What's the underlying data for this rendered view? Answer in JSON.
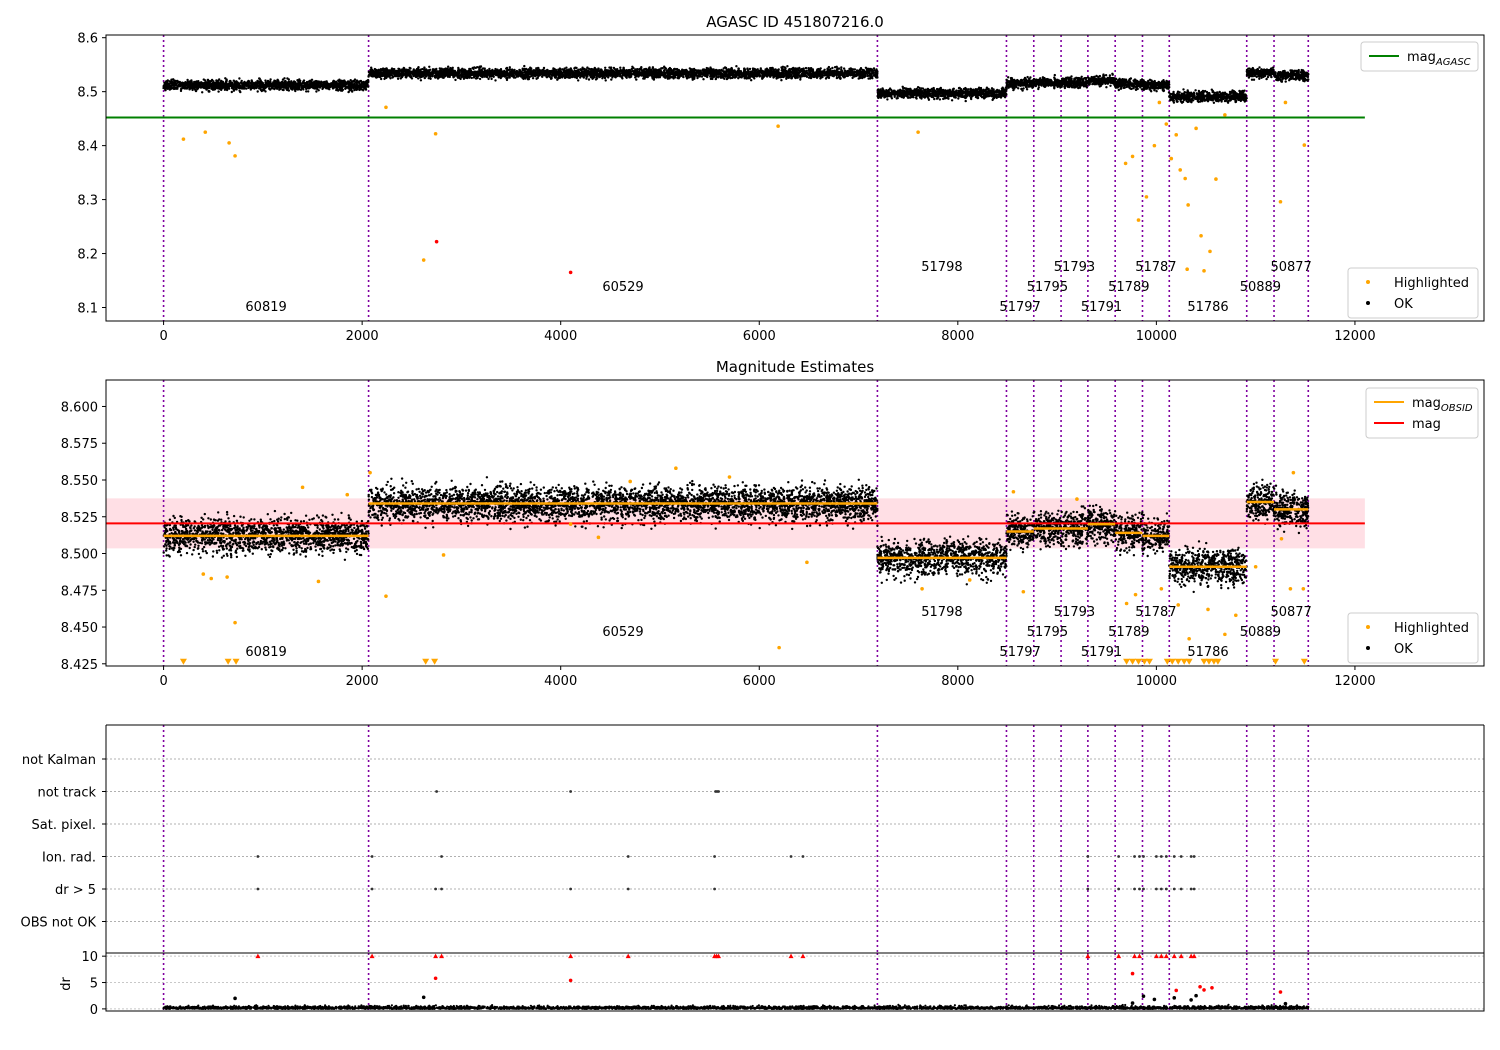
{
  "obsids": [
    {
      "label": "60819",
      "start": 0,
      "end": 2065,
      "mag": 8.512,
      "row": 2
    },
    {
      "label": "60529",
      "start": 2065,
      "end": 7190,
      "mag": 8.534,
      "row": 1
    },
    {
      "label": "51798",
      "start": 7190,
      "end": 8490,
      "mag": 8.497,
      "row": 0
    },
    {
      "label": "51797",
      "start": 8490,
      "end": 8765,
      "mag": 8.515,
      "row": 2
    },
    {
      "label": "51795",
      "start": 8765,
      "end": 9040,
      "mag": 8.517,
      "row": 1
    },
    {
      "label": "51793",
      "start": 9040,
      "end": 9310,
      "mag": 8.517,
      "row": 0
    },
    {
      "label": "51791",
      "start": 9310,
      "end": 9585,
      "mag": 8.52,
      "row": 2
    },
    {
      "label": "51789",
      "start": 9585,
      "end": 9860,
      "mag": 8.514,
      "row": 1
    },
    {
      "label": "51787",
      "start": 9860,
      "end": 10130,
      "mag": 8.512,
      "row": 0
    },
    {
      "label": "51786",
      "start": 10130,
      "end": 10910,
      "mag": 8.491,
      "row": 2
    },
    {
      "label": "50889",
      "start": 10910,
      "end": 11185,
      "mag": 8.535,
      "row": 1
    },
    {
      "label": "50877",
      "start": 11185,
      "end": 11530,
      "mag": 8.53,
      "row": 0
    }
  ],
  "chart_data": [
    {
      "type": "scatter",
      "title": "AGASC ID 451807216.0",
      "xlabel": "",
      "ylabel": "",
      "xlim": [
        -580,
        13300
      ],
      "ylim": [
        8.075,
        8.605
      ],
      "xticks": [
        0,
        2000,
        4000,
        6000,
        8000,
        10000,
        12000
      ],
      "yticks": [
        8.1,
        8.2,
        8.3,
        8.4,
        8.5,
        8.6
      ],
      "reference_lines": [
        {
          "name": "mag_AGASC",
          "y": 8.452,
          "x_range": [
            -580,
            12100
          ],
          "color": "#008000"
        }
      ],
      "legend_top": {
        "placement": "upper right",
        "entries": [
          {
            "name": "mag",
            "sub": "AGASC",
            "color": "#008000",
            "kind": "line"
          }
        ]
      },
      "legend_bottom": {
        "placement": "lower right",
        "entries": [
          {
            "name": "Highlighted",
            "color": "#ffa500",
            "kind": "dot"
          },
          {
            "name": "OK",
            "color": "#000000",
            "kind": "dot"
          }
        ]
      },
      "series": [
        {
          "name": "OK",
          "color": "#000000",
          "note": "dense measurements, one cluster per observation at its mean magnitude"
        },
        {
          "name": "Highlighted",
          "color": "#ffa500",
          "points": [
            [
              200,
              8.412
            ],
            [
              420,
              8.425
            ],
            [
              660,
              8.405
            ],
            [
              720,
              8.381
            ],
            [
              2240,
              8.471
            ],
            [
              2740,
              8.422
            ],
            [
              6190,
              8.436
            ],
            [
              7600,
              8.425
            ],
            [
              9690,
              8.367
            ],
            [
              9760,
              8.38
            ],
            [
              9820,
              8.262
            ],
            [
              9900,
              8.305
            ],
            [
              9980,
              8.4
            ],
            [
              10030,
              8.48
            ],
            [
              10100,
              8.44
            ],
            [
              10150,
              8.376
            ],
            [
              10200,
              8.42
            ],
            [
              10240,
              8.355
            ],
            [
              10290,
              8.339
            ],
            [
              10320,
              8.29
            ],
            [
              10400,
              8.432
            ],
            [
              10450,
              8.233
            ],
            [
              10540,
              8.204
            ],
            [
              10600,
              8.338
            ],
            [
              10690,
              8.457
            ],
            [
              11250,
              8.296
            ],
            [
              11300,
              8.48
            ],
            [
              11490,
              8.401
            ],
            [
              2620,
              8.188
            ],
            [
              10480,
              8.168
            ],
            [
              10310,
              8.171
            ]
          ]
        },
        {
          "name": "Red",
          "color": "#ff0000",
          "points": [
            [
              2750,
              8.222
            ],
            [
              4100,
              8.165
            ]
          ]
        }
      ]
    },
    {
      "type": "scatter",
      "title": "Magnitude Estimates",
      "xlabel": "",
      "ylabel": "",
      "xlim": [
        -580,
        13300
      ],
      "ylim": [
        8.4235,
        8.618
      ],
      "xticks": [
        0,
        2000,
        4000,
        6000,
        8000,
        10000,
        12000
      ],
      "yticks": [
        8.425,
        8.45,
        8.475,
        8.5,
        8.525,
        8.55,
        8.575,
        8.6
      ],
      "ytick_labels": [
        "8.425",
        "8.450",
        "8.475",
        "8.500",
        "8.525",
        "8.550",
        "8.575",
        "8.600"
      ],
      "reference_lines": [
        {
          "name": "mag",
          "y": 8.5205,
          "x_range": [
            -580,
            12100
          ],
          "color": "#ff0000"
        }
      ],
      "error_band": {
        "y_low": 8.5035,
        "y_high": 8.5375,
        "color": "#ffc0cb"
      },
      "legend_top": {
        "placement": "upper right",
        "entries": [
          {
            "name": "mag",
            "sub": "OBSID",
            "color": "#ffa500",
            "kind": "line"
          },
          {
            "name": "mag",
            "sub": "",
            "color": "#ff0000",
            "kind": "line"
          }
        ]
      },
      "legend_bottom": {
        "placement": "lower right",
        "entries": [
          {
            "name": "Highlighted",
            "color": "#ffa500",
            "kind": "dot"
          },
          {
            "name": "OK",
            "color": "#000000",
            "kind": "dot"
          }
        ]
      },
      "series": [
        {
          "name": "Highlighted",
          "color": "#ffa500",
          "points": [
            [
              400,
              8.486
            ],
            [
              480,
              8.483
            ],
            [
              640,
              8.484
            ],
            [
              720,
              8.453
            ],
            [
              1400,
              8.545
            ],
            [
              1560,
              8.481
            ],
            [
              1850,
              8.54
            ],
            [
              2080,
              8.555
            ],
            [
              2240,
              8.471
            ],
            [
              2820,
              8.499
            ],
            [
              4100,
              8.52
            ],
            [
              4380,
              8.511
            ],
            [
              4700,
              8.549
            ],
            [
              5160,
              8.558
            ],
            [
              5700,
              8.552
            ],
            [
              6200,
              8.436
            ],
            [
              6480,
              8.494
            ],
            [
              7640,
              8.476
            ],
            [
              8120,
              8.482
            ],
            [
              8560,
              8.542
            ],
            [
              8660,
              8.474
            ],
            [
              9200,
              8.537
            ],
            [
              9700,
              8.466
            ],
            [
              9790,
              8.472
            ],
            [
              10050,
              8.476
            ],
            [
              10220,
              8.465
            ],
            [
              10330,
              8.442
            ],
            [
              10520,
              8.462
            ],
            [
              10690,
              8.445
            ],
            [
              10800,
              8.458
            ],
            [
              11000,
              8.491
            ],
            [
              11350,
              8.476
            ],
            [
              11480,
              8.476
            ],
            [
              11380,
              8.555
            ],
            [
              11260,
              8.51
            ]
          ]
        },
        {
          "name": "Below range",
          "color": "#ffa500",
          "marker": "triangle-down",
          "points": [
            [
              200,
              8.425
            ],
            [
              650,
              8.425
            ],
            [
              730,
              8.425
            ],
            [
              2640,
              8.425
            ],
            [
              2730,
              8.425
            ],
            [
              9700,
              8.425
            ],
            [
              9760,
              8.425
            ],
            [
              9820,
              8.425
            ],
            [
              9880,
              8.425
            ],
            [
              9930,
              8.425
            ],
            [
              10110,
              8.425
            ],
            [
              10160,
              8.425
            ],
            [
              10220,
              8.425
            ],
            [
              10280,
              8.425
            ],
            [
              10330,
              8.425
            ],
            [
              10480,
              8.425
            ],
            [
              10530,
              8.425
            ],
            [
              10580,
              8.425
            ],
            [
              10620,
              8.425
            ],
            [
              11200,
              8.425
            ],
            [
              11490,
              8.425
            ]
          ]
        }
      ]
    },
    {
      "type": "scatter",
      "title": "",
      "xlabel": "",
      "ylabel": "",
      "xlim": [
        -580,
        13300
      ],
      "flag_rows": [
        "not Kalman",
        "not track",
        "Sat. pixel.",
        "Ion. rad.",
        "dr > 5",
        "OBS not OK"
      ],
      "flag_points": {
        "not track": [
          2750,
          4100,
          5560,
          5575,
          5590
        ],
        "Ion. rad.": [
          950,
          2100,
          2800,
          4680,
          5550,
          6320,
          6440,
          9310,
          9620,
          9780,
          9830,
          9870,
          10000,
          10050,
          10100,
          10180,
          10250,
          10350,
          10380
        ],
        "dr > 5": [
          950,
          2100,
          2740,
          2800,
          4100,
          4680,
          5550,
          9310,
          9620,
          9780,
          9830,
          9870,
          10000,
          10050,
          10100,
          10180,
          10250,
          10350,
          10380
        ]
      }
    },
    {
      "type": "scatter",
      "title": "",
      "xlabel": "",
      "ylabel": "dr",
      "xlim": [
        -580,
        13300
      ],
      "ylim": [
        -0.4,
        10.6
      ],
      "yticks": [
        0,
        5,
        10
      ],
      "series": [
        {
          "name": "dr",
          "color": "#000000",
          "note": "dense near zero",
          "points": [
            [
              720,
              2.0
            ],
            [
              2620,
              2.2
            ],
            [
              9760,
              1.1
            ],
            [
              9870,
              2.4
            ],
            [
              9980,
              1.8
            ],
            [
              10180,
              2.1
            ],
            [
              10350,
              1.7
            ],
            [
              10400,
              2.5
            ],
            [
              11300,
              1.0
            ]
          ]
        },
        {
          "name": "dr capped",
          "color": "#ff0000",
          "marker": "triangle-up",
          "points": [
            [
              950,
              10
            ],
            [
              2100,
              10
            ],
            [
              2740,
              10
            ],
            [
              2800,
              10
            ],
            [
              4100,
              10
            ],
            [
              4680,
              10
            ],
            [
              5550,
              10
            ],
            [
              5570,
              10
            ],
            [
              5590,
              10
            ],
            [
              6320,
              10
            ],
            [
              6440,
              10
            ],
            [
              9310,
              10
            ],
            [
              9620,
              10
            ],
            [
              9780,
              10
            ],
            [
              9830,
              10
            ],
            [
              10000,
              10
            ],
            [
              10050,
              10
            ],
            [
              10100,
              10
            ],
            [
              10180,
              10
            ],
            [
              10250,
              10
            ],
            [
              10350,
              10
            ],
            [
              10380,
              10
            ]
          ]
        },
        {
          "name": "dr outliers",
          "color": "#ff0000",
          "points": [
            [
              2740,
              5.8
            ],
            [
              4100,
              5.4
            ],
            [
              9760,
              6.7
            ],
            [
              10200,
              3.5
            ],
            [
              10440,
              4.2
            ],
            [
              10480,
              3.6
            ],
            [
              10560,
              4.0
            ],
            [
              11250,
              3.2
            ]
          ]
        }
      ]
    }
  ]
}
